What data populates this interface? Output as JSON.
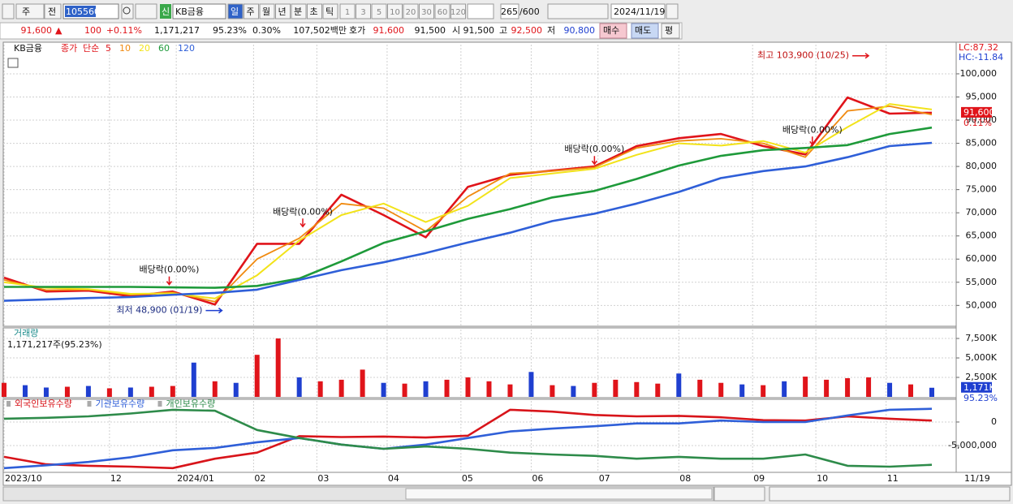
{
  "toolbar": {
    "menu": "주",
    "range": "전",
    "code": "105560",
    "tag": "신",
    "name": "KB금융",
    "periods": [
      "일",
      "주",
      "월",
      "년",
      "분",
      "초",
      "틱"
    ],
    "intervals": [
      "1",
      "3",
      "5",
      "10",
      "20",
      "30",
      "60",
      "120"
    ],
    "count": "265",
    "max": "/600",
    "date": "2024/11/19"
  },
  "info": {
    "price": "91,600",
    "arrow": "▲",
    "change": "100",
    "change_pct": "+0.11%",
    "volume": "1,171,217",
    "volume_pct": "95.23%",
    "turnover": "0.30%",
    "amount": "107,502백만",
    "quote_label": "호가",
    "ask": "91,600",
    "bid": "91,500",
    "open_label": "시",
    "open": "91,500",
    "high_label": "고",
    "high": "92,500",
    "low_label": "저",
    "low": "90,800",
    "buy": "매수",
    "sell": "매도",
    "avg": "평"
  },
  "chart_data": [
    {
      "type": "line",
      "title": "KB금융",
      "price_label": "종가",
      "method_label": "단순",
      "x": [
        0,
        12,
        24,
        36,
        48,
        60,
        72,
        84,
        96,
        108,
        120,
        132,
        144,
        156,
        168,
        180,
        192,
        204,
        216,
        228,
        240,
        252,
        264
      ],
      "series": [
        {
          "name": "5",
          "color": "#e0141a",
          "width": 2.6,
          "values": [
            56000,
            53000,
            53200,
            52000,
            53000,
            50200,
            63300,
            63300,
            73900,
            69500,
            64700,
            75600,
            78200,
            79100,
            80000,
            84400,
            86100,
            87000,
            84400,
            82600,
            94900,
            91400,
            91600
          ]
        },
        {
          "name": "10",
          "color": "#f08a10",
          "width": 1.8,
          "values": [
            55500,
            53300,
            53400,
            52300,
            52800,
            50800,
            60000,
            64500,
            72000,
            71000,
            66000,
            73500,
            78500,
            79000,
            79800,
            84000,
            85500,
            86000,
            85000,
            82000,
            92000,
            93000,
            91200
          ]
        },
        {
          "name": "20",
          "color": "#f2e31a",
          "width": 2,
          "values": [
            55000,
            53800,
            53500,
            52500,
            52600,
            51500,
            56500,
            64000,
            69500,
            72000,
            68000,
            71500,
            77500,
            78500,
            79500,
            82500,
            85000,
            84500,
            85500,
            83000,
            88500,
            93500,
            92300
          ]
        },
        {
          "name": "60",
          "color": "#1e9a3a",
          "width": 2.6,
          "values": [
            54000,
            54000,
            54000,
            54000,
            53900,
            53800,
            54200,
            55800,
            59500,
            63500,
            66000,
            68700,
            70800,
            73300,
            74700,
            77300,
            80200,
            82300,
            83500,
            84000,
            84600,
            87000,
            88400
          ]
        },
        {
          "name": "120",
          "color": "#2f5fd8",
          "width": 2.6,
          "values": [
            51000,
            51300,
            51600,
            51800,
            52300,
            52700,
            53400,
            55500,
            57600,
            59300,
            61300,
            63600,
            65700,
            68200,
            69800,
            72000,
            74500,
            77500,
            79000,
            80000,
            82000,
            84400,
            85100
          ]
        }
      ],
      "xlim": [
        0,
        264
      ],
      "xticks": [
        {
          "value": 0,
          "label": "2023/10"
        },
        {
          "value": 30,
          "label": "12"
        },
        {
          "value": 49,
          "label": "2024/01"
        },
        {
          "value": 71,
          "label": "02"
        },
        {
          "value": 89,
          "label": "03"
        },
        {
          "value": 109,
          "label": "04"
        },
        {
          "value": 130,
          "label": "05"
        },
        {
          "value": 150,
          "label": "06"
        },
        {
          "value": 169,
          "label": "07"
        },
        {
          "value": 192,
          "label": "08"
        },
        {
          "value": 213,
          "label": "09"
        },
        {
          "value": 231,
          "label": "10"
        },
        {
          "value": 251,
          "label": "11"
        }
      ],
      "x_end_label": "11/19",
      "ylim": [
        45500,
        106300
      ],
      "yticks": [
        {
          "value": 50000,
          "label": "50,000"
        },
        {
          "value": 55000,
          "label": "55,000"
        },
        {
          "value": 60000,
          "label": "60,000"
        },
        {
          "value": 65000,
          "label": "65,000"
        },
        {
          "value": 70000,
          "label": "70,000"
        },
        {
          "value": 75000,
          "label": "75,000"
        },
        {
          "value": 80000,
          "label": "80,000"
        },
        {
          "value": 85000,
          "label": "85,000"
        },
        {
          "value": 90000,
          "label": "90,000"
        },
        {
          "value": 95000,
          "label": "95,000"
        },
        {
          "value": 100000,
          "label": "100,000"
        }
      ],
      "grid": true,
      "annotations": [
        {
          "text": "최고 103,900 (10/25)",
          "x": 246,
          "y": 103900,
          "kind": "high"
        },
        {
          "text": "최저 48,900 (01/19)",
          "x": 62,
          "y": 48900,
          "kind": "low"
        },
        {
          "text": "배당락(0.00%)",
          "x": 47,
          "y": 54500,
          "kind": "dividend"
        },
        {
          "text": "배당락(0.00%)",
          "x": 85,
          "y": 67000,
          "kind": "dividend"
        },
        {
          "text": "배당락(0.00%)",
          "x": 168,
          "y": 80500,
          "kind": "dividend"
        },
        {
          "text": "배당락(0.00%)",
          "x": 230,
          "y": 84700,
          "kind": "dividend"
        }
      ],
      "right_labels": [
        "LC:87.32",
        "HC:-11.84"
      ],
      "last": {
        "value": 91600,
        "label": "91,600"
      },
      "last_change": "0.11%"
    },
    {
      "type": "bar",
      "title": "거래량",
      "subtitle": "1,171,217주(95.23%)",
      "x": [
        0,
        6,
        12,
        18,
        24,
        30,
        36,
        42,
        48,
        54,
        60,
        66,
        72,
        78,
        84,
        90,
        96,
        102,
        108,
        114,
        120,
        126,
        132,
        138,
        144,
        150,
        156,
        162,
        168,
        174,
        180,
        186,
        192,
        198,
        204,
        210,
        216,
        222,
        228,
        234,
        240,
        246,
        252,
        258,
        264
      ],
      "values": [
        1800,
        1500,
        1200,
        1300,
        1400,
        1100,
        1200,
        1300,
        1400,
        4400,
        2000,
        1800,
        5400,
        7500,
        2500,
        2000,
        2200,
        3500,
        1800,
        1700,
        2000,
        2200,
        2500,
        2000,
        1600,
        3200,
        1500,
        1400,
        1800,
        2200,
        1900,
        1700,
        3000,
        2200,
        1800,
        1600,
        1500,
        2000,
        2600,
        2200,
        2400,
        2500,
        1800,
        1600,
        1171
      ],
      "color": "#e0141a",
      "down_color": "#1f3fd0",
      "down": [
        1,
        2,
        4,
        6,
        9,
        11,
        14,
        18,
        20,
        25,
        27,
        32,
        35,
        37,
        42,
        44
      ],
      "ylim": [
        0,
        8650
      ],
      "yticks": [
        {
          "value": 2500,
          "label": "2,500K"
        },
        {
          "value": 5000,
          "label": "5,000K"
        },
        {
          "value": 7500,
          "label": "7,500K"
        }
      ],
      "grid": true,
      "last": {
        "value": 1171,
        "label": "1,171K"
      },
      "last_change": "95.23%"
    },
    {
      "type": "line",
      "x": [
        0,
        12,
        24,
        36,
        48,
        60,
        72,
        84,
        96,
        108,
        120,
        132,
        144,
        156,
        168,
        180,
        192,
        204,
        216,
        228,
        240,
        252,
        264
      ],
      "series": [
        {
          "name": "외국인보유수량",
          "color": "#d8141a",
          "width": 2.6,
          "values": [
            -7400000,
            -9000000,
            -9300000,
            -9500000,
            -9800000,
            -7800000,
            -6500000,
            -3000000,
            -3200000,
            -3100000,
            -3300000,
            -2900000,
            2600000,
            2200000,
            1500000,
            1200000,
            1300000,
            1000000,
            400000,
            300000,
            1200000,
            700000,
            300000
          ]
        },
        {
          "name": "기관보유수량",
          "color": "#2f5fd8",
          "width": 2.6,
          "values": [
            -9800000,
            -9200000,
            -8500000,
            -7500000,
            -6000000,
            -5500000,
            -4300000,
            -3400000,
            -4800000,
            -5700000,
            -4800000,
            -3400000,
            -2000000,
            -1400000,
            -900000,
            -300000,
            -300000,
            300000,
            0,
            0,
            1400000,
            2600000,
            2800000
          ]
        },
        {
          "name": "개인보유수량",
          "color": "#2e8b4a",
          "width": 2.6,
          "values": [
            700000,
            900000,
            1200000,
            1800000,
            2600000,
            2400000,
            -1700000,
            -3400000,
            -4800000,
            -5700000,
            -5200000,
            -5700000,
            -6500000,
            -6900000,
            -7200000,
            -7800000,
            -7400000,
            -7800000,
            -7800000,
            -6900000,
            -9300000,
            -9500000,
            -9100000
          ]
        }
      ],
      "ylim": [
        -10700000,
        4480000
      ],
      "yticks": [
        0,
        {
          "value": -5000000,
          "label": "-5,000,000"
        }
      ],
      "grid": true
    }
  ]
}
